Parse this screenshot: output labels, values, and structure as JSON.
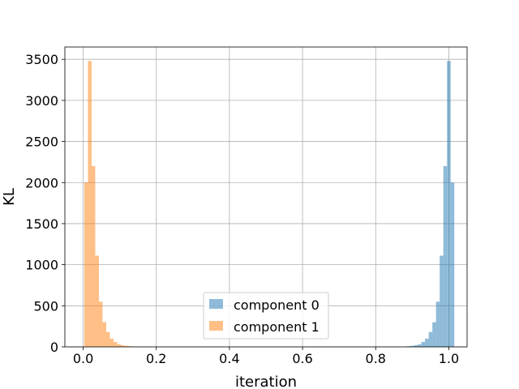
{
  "chart_data": {
    "type": "histogram",
    "title": "",
    "xlabel": "iteration",
    "ylabel": "KL",
    "xlim": [
      -0.05,
      1.05
    ],
    "ylim": [
      0,
      3650
    ],
    "xticks": [
      0.0,
      0.2,
      0.4,
      0.6,
      0.8,
      1.0
    ],
    "xtick_labels": [
      "0.0",
      "0.2",
      "0.4",
      "0.6",
      "0.8",
      "1.0"
    ],
    "yticks": [
      0,
      500,
      1000,
      1500,
      2000,
      2500,
      3000,
      3500
    ],
    "ytick_labels": [
      "0",
      "500",
      "1000",
      "1500",
      "2000",
      "2500",
      "3000",
      "3500"
    ],
    "grid": true,
    "legend_position": "lower center",
    "series": [
      {
        "name": "component 0",
        "color": "#1f77b4",
        "alpha": 0.5,
        "bins": [
          {
            "x0": 0.885,
            "x1": 0.895,
            "count": 8
          },
          {
            "x0": 0.895,
            "x1": 0.905,
            "count": 12
          },
          {
            "x0": 0.905,
            "x1": 0.915,
            "count": 20
          },
          {
            "x0": 0.915,
            "x1": 0.925,
            "count": 30
          },
          {
            "x0": 0.925,
            "x1": 0.935,
            "count": 60
          },
          {
            "x0": 0.935,
            "x1": 0.945,
            "count": 100
          },
          {
            "x0": 0.945,
            "x1": 0.955,
            "count": 180
          },
          {
            "x0": 0.955,
            "x1": 0.965,
            "count": 300
          },
          {
            "x0": 0.965,
            "x1": 0.975,
            "count": 550
          },
          {
            "x0": 0.975,
            "x1": 0.985,
            "count": 1110
          },
          {
            "x0": 0.985,
            "x1": 0.995,
            "count": 2200
          },
          {
            "x0": 0.995,
            "x1": 1.005,
            "count": 3480
          },
          {
            "x0": 1.005,
            "x1": 1.015,
            "count": 2000
          }
        ]
      },
      {
        "name": "component 1",
        "color": "#ff7f0e",
        "alpha": 0.5,
        "bins": [
          {
            "x0": 0.003,
            "x1": 0.013,
            "count": 2000
          },
          {
            "x0": 0.013,
            "x1": 0.023,
            "count": 3480
          },
          {
            "x0": 0.023,
            "x1": 0.033,
            "count": 2200
          },
          {
            "x0": 0.033,
            "x1": 0.043,
            "count": 1110
          },
          {
            "x0": 0.043,
            "x1": 0.053,
            "count": 550
          },
          {
            "x0": 0.053,
            "x1": 0.063,
            "count": 300
          },
          {
            "x0": 0.063,
            "x1": 0.073,
            "count": 180
          },
          {
            "x0": 0.073,
            "x1": 0.083,
            "count": 100
          },
          {
            "x0": 0.083,
            "x1": 0.093,
            "count": 60
          },
          {
            "x0": 0.093,
            "x1": 0.103,
            "count": 30
          },
          {
            "x0": 0.103,
            "x1": 0.113,
            "count": 20
          },
          {
            "x0": 0.113,
            "x1": 0.123,
            "count": 12
          },
          {
            "x0": 0.123,
            "x1": 0.133,
            "count": 8
          }
        ]
      }
    ]
  }
}
